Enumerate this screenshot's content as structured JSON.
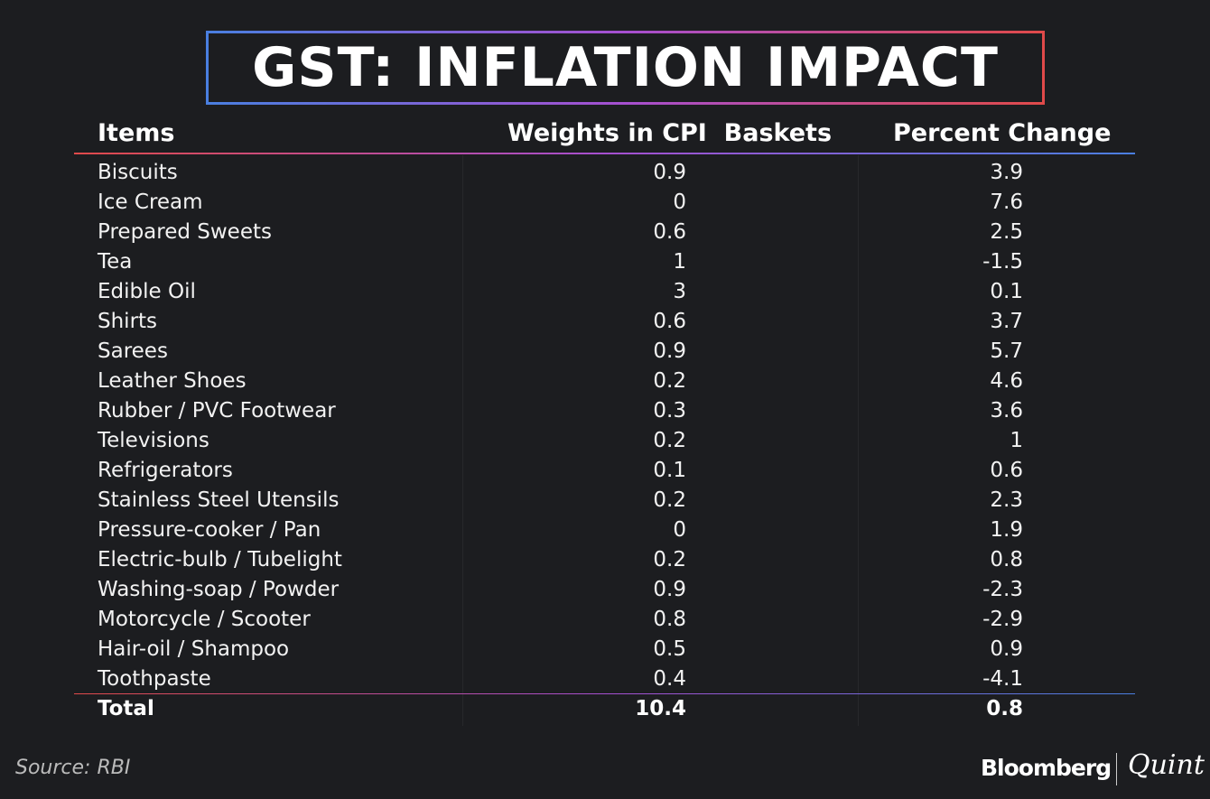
{
  "header": {
    "title": "GST: INFLATION IMPACT"
  },
  "table": {
    "columns": [
      "Items",
      "Weights in CPI  Baskets",
      "Percent Change"
    ],
    "rows": [
      [
        "Biscuits",
        0.9,
        3.9
      ],
      [
        "Ice Cream",
        0,
        7.6
      ],
      [
        "Prepared Sweets",
        0.6,
        2.5
      ],
      [
        "Tea",
        1,
        -1.5
      ],
      [
        "Edible Oil",
        3,
        0.1
      ],
      [
        "Shirts",
        0.6,
        3.7
      ],
      [
        "Sarees",
        0.9,
        5.7
      ],
      [
        "Leather Shoes",
        0.2,
        4.6
      ],
      [
        "Rubber / PVC Footwear",
        0.3,
        3.6
      ],
      [
        "Televisions",
        0.2,
        1
      ],
      [
        "Refrigerators",
        0.1,
        0.6
      ],
      [
        "Stainless Steel Utensils",
        0.2,
        2.3
      ],
      [
        "Pressure-cooker / Pan",
        0,
        1.9
      ],
      [
        "Electric-bulb / Tubelight",
        0.2,
        0.8
      ],
      [
        "Washing-soap / Powder",
        0.9,
        -2.3
      ],
      [
        "Motorcycle / Scooter",
        0.8,
        -2.9
      ],
      [
        "Hair-oil / Shampoo",
        0.5,
        0.9
      ],
      [
        "Toothpaste",
        0.4,
        -4.1
      ]
    ],
    "total": [
      "Total",
      10.4,
      0.8
    ]
  },
  "footer": {
    "source": "Source: RBI",
    "brand": "Bloomberg",
    "brand2": "Quint"
  }
}
